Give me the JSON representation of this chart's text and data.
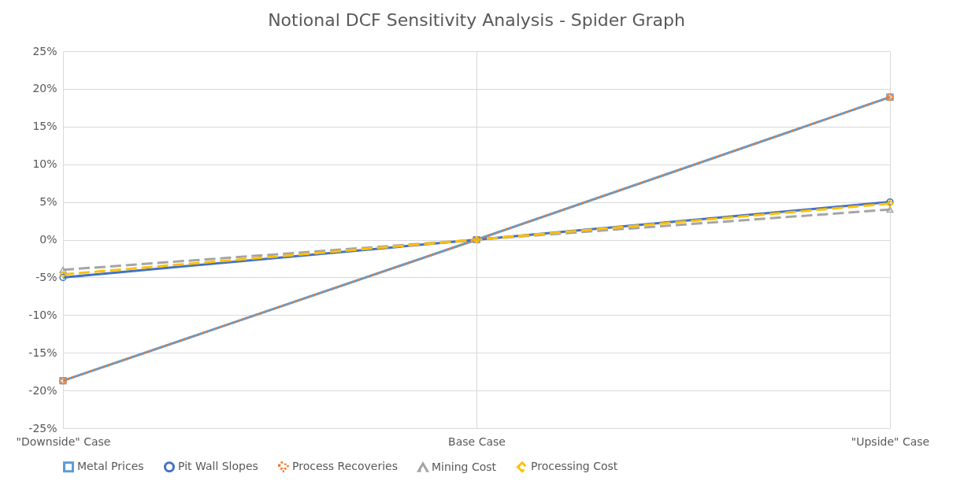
{
  "chart_data": {
    "type": "line",
    "title": "Notional DCF Sensitivity Analysis - Spider Graph",
    "categories": [
      "\"Downside\" Case",
      "Base Case",
      "\"Upside\" Case"
    ],
    "series": [
      {
        "name": "Metal Prices",
        "color": "#5b9bd5",
        "marker": "square",
        "line_style": "solid",
        "values": [
          -18.7,
          0,
          18.9
        ]
      },
      {
        "name": "Pit Wall Slopes",
        "color": "#4472c4",
        "marker": "circle",
        "line_style": "solid",
        "values": [
          -5,
          0,
          5
        ]
      },
      {
        "name": "Process Recoveries",
        "color": "#ed7d31",
        "marker": "cross",
        "line_style": "dotted",
        "values": [
          -18.7,
          0,
          18.9
        ]
      },
      {
        "name": "Mining Cost",
        "color": "#a5a5a5",
        "marker": "triangle",
        "line_style": "dashed",
        "values": [
          -4,
          0,
          4
        ]
      },
      {
        "name": "Processing Cost",
        "color": "#ffc000",
        "marker": "diamond",
        "line_style": "dashed",
        "values": [
          -4.6,
          0,
          4.8
        ]
      }
    ],
    "ylim": [
      -25,
      25
    ],
    "yticks": [
      {
        "value": -25,
        "label": "-25%"
      },
      {
        "value": -20,
        "label": "-20%"
      },
      {
        "value": -15,
        "label": "-15%"
      },
      {
        "value": -10,
        "label": "-10%"
      },
      {
        "value": -5,
        "label": "-5%"
      },
      {
        "value": 0,
        "label": "0%"
      },
      {
        "value": 5,
        "label": "5%"
      },
      {
        "value": 10,
        "label": "10%"
      },
      {
        "value": 15,
        "label": "15%"
      },
      {
        "value": 20,
        "label": "20%"
      },
      {
        "value": 25,
        "label": "25%"
      }
    ],
    "grid": true,
    "legend": "bottom"
  }
}
